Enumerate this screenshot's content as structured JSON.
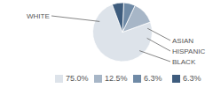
{
  "chart_data": {
    "type": "pie",
    "categories": [
      "WHITE",
      "BLACK",
      "HISPANIC",
      "ASIAN"
    ],
    "values": [
      75.0,
      12.5,
      6.3,
      6.3
    ],
    "value_labels": [
      "75.0%",
      "12.5%",
      "6.3%",
      "6.3%"
    ],
    "colors": [
      "#dde3ea",
      "#a7b6c7",
      "#6f8aa6",
      "#3e5c7d"
    ],
    "legend": "bottom"
  }
}
